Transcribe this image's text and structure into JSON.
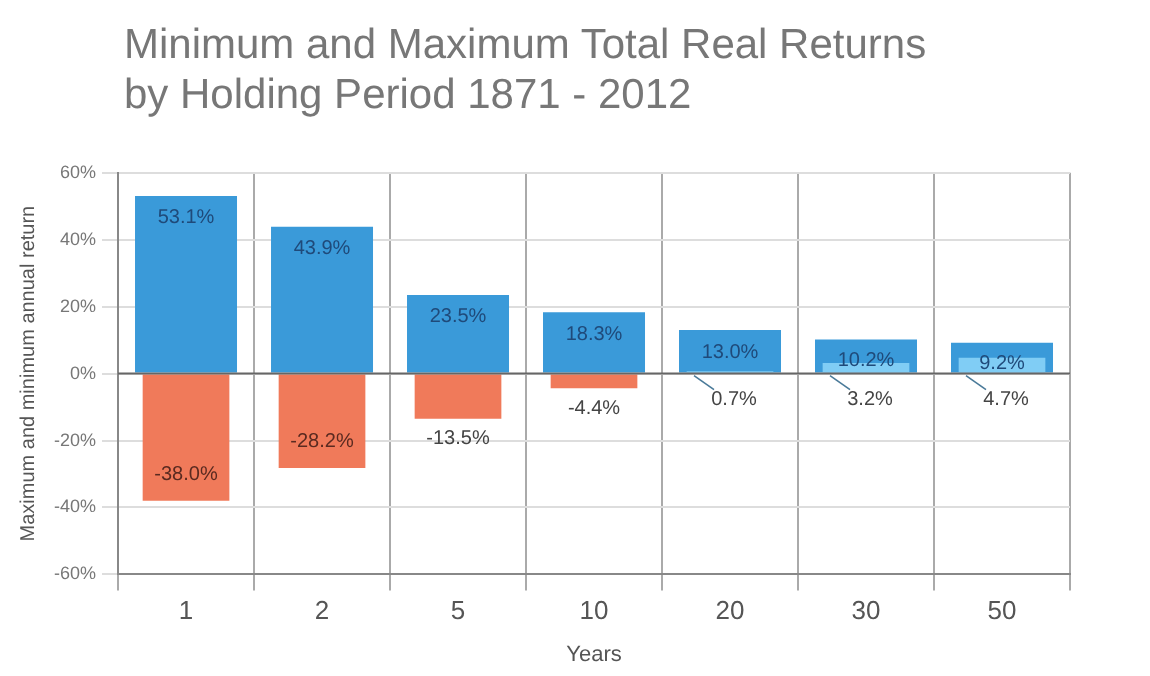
{
  "chart_data": {
    "type": "bar",
    "title": "Minimum and Maximum Total Real Returns by Holding Period 1871 - 2012",
    "xlabel": "Years",
    "ylabel": "Maximum and minimum annual return",
    "categories": [
      "1",
      "2",
      "5",
      "10",
      "20",
      "30",
      "50"
    ],
    "series": [
      {
        "color": "#3a9ad9",
        "values": [
          53.1,
          43.9,
          23.5,
          18.3,
          13.0,
          10.2,
          9.2
        ],
        "value_labels": [
          "53.1%",
          "43.9%",
          "23.5%",
          "18.3%",
          "13.0%",
          "10.2%",
          "9.2%"
        ]
      },
      {
        "colors": [
          "#f07a5a",
          "#f07a5a",
          "#f07a5a",
          "#f07a5a",
          "#80cdf5",
          "#80cdf5",
          "#80cdf5"
        ],
        "values": [
          -38.0,
          -28.2,
          -13.5,
          -4.4,
          0.7,
          3.2,
          4.7
        ],
        "value_labels": [
          "-38.0%",
          "-28.2%",
          "-13.5%",
          "-4.4%",
          "0.7%",
          "3.2%",
          "4.7%"
        ]
      }
    ],
    "ylim": [
      -60,
      60
    ],
    "yticks": [
      {
        "value": -60,
        "label": "-60%"
      },
      {
        "value": -40,
        "label": "-40%"
      },
      {
        "value": -20,
        "label": "-20%"
      },
      {
        "value": 0,
        "label": "0%"
      },
      {
        "value": 20,
        "label": "20%"
      },
      {
        "value": 40,
        "label": "40%"
      },
      {
        "value": 60,
        "label": "60%"
      }
    ],
    "grid": true,
    "legend": false
  }
}
